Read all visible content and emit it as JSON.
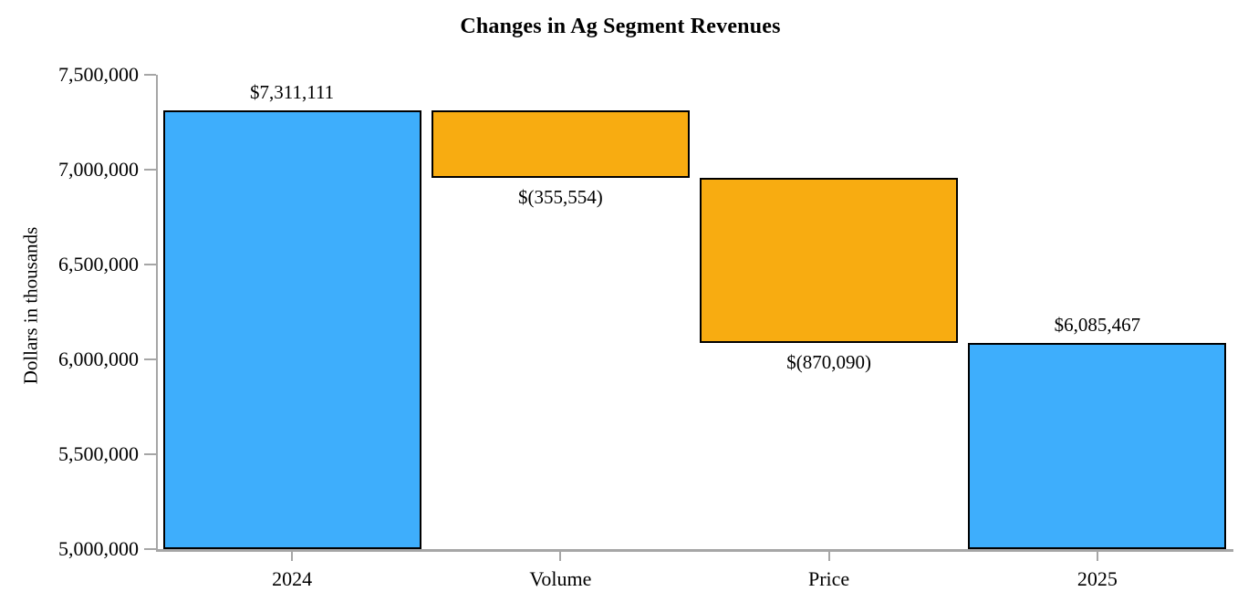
{
  "title": "Changes in Ag Segment Revenues",
  "chart_data": {
    "type": "bar",
    "subtype": "waterfall",
    "title": "Changes in Ag Segment Revenues",
    "xlabel": "",
    "ylabel": "Dollars in thousands",
    "ylim": [
      5000000,
      7500000
    ],
    "ytick_step": 500000,
    "ytick_values": [
      7500000,
      7000000,
      6500000,
      6000000,
      5500000,
      5000000
    ],
    "yticks": [
      "7,500,000",
      "7,000,000",
      "6,500,000",
      "6,000,000",
      "5,500,000",
      "5,000,000"
    ],
    "categories": [
      "2024",
      "Volume",
      "Price",
      "2025"
    ],
    "grid": false,
    "legend": false,
    "bars": [
      {
        "category": "2024",
        "label": "$7,311,111",
        "value": 7311111,
        "start": 5000000,
        "end": 7311111,
        "role": "total",
        "color": "#3EAEFC",
        "label_position": "above"
      },
      {
        "category": "Volume",
        "label": "$(355,554)",
        "value": -355554,
        "start": 7311111,
        "end": 6955557,
        "role": "decrease",
        "color": "#F8AC11",
        "label_position": "below"
      },
      {
        "category": "Price",
        "label": "$(870,090)",
        "value": -870090,
        "start": 6955557,
        "end": 6085467,
        "role": "decrease",
        "color": "#F8AC11",
        "label_position": "below"
      },
      {
        "category": "2025",
        "label": "$6,085,467",
        "value": 6085467,
        "start": 5000000,
        "end": 6085467,
        "role": "total",
        "color": "#3EAEFC",
        "label_position": "above"
      }
    ],
    "colors": {
      "total_bar": "#3EAEFC",
      "decrease_bar": "#F8AC11",
      "bar_border": "#000000",
      "axis": "#A6A6A6",
      "text": "#000000",
      "background": "#FFFFFF"
    }
  }
}
